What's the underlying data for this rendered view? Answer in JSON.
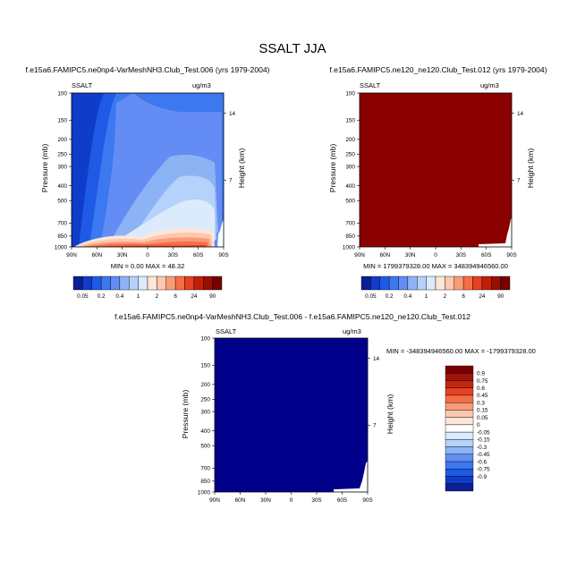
{
  "title": "SSALT JJA",
  "panels": [
    {
      "case": "f.e15a6.FAMIPC5.ne0np4-VarMeshNH3.Club_Test.006 (yrs 1979-2004)",
      "var": "SSALT",
      "units": "ug/m3",
      "ylabel": "Pressure (mb)",
      "ylabel2": "Height (km)",
      "stats": "MIN =   0.00  MAX =  48.32",
      "colorbar_labels": [
        "0.05",
        "0.2",
        "0.4",
        "1",
        "2",
        "6",
        "24",
        "90"
      ]
    },
    {
      "case": "f.e15a6.FAMIPC5.ne120_ne120.Club_Test.012 (yrs 1979-2004)",
      "var": "SSALT",
      "units": "ug/m3",
      "ylabel": "Pressure (mb)",
      "ylabel2": "Height (km)",
      "stats": "MIN = 1799379328.00  MAX = 348394946560.00",
      "colorbar_labels": [
        "0.05",
        "0.2",
        "0.4",
        "1",
        "2",
        "6",
        "24",
        "90"
      ]
    },
    {
      "case": "f.e15a6.FAMIPC5.ne0np4-VarMeshNH3.Club_Test.006 - f.e15a6.FAMIPC5.ne120_ne120.Club_Test.012",
      "var": "SSALT",
      "units": "ug/m3",
      "ylabel": "Pressure (mb)",
      "ylabel2": "Height (km)",
      "stats": "MIN = -348394946560.00  MAX = -1799379328.00",
      "colorbar_labels": [
        "0.9",
        "0.75",
        "0.6",
        "0.45",
        "0.3",
        "0.15",
        "0.05",
        "0",
        "-0.05",
        "-0.15",
        "-0.3",
        "-0.45",
        "-0.6",
        "-0.75",
        "-0.9"
      ]
    }
  ],
  "chart_data": {
    "type": "heatmap",
    "x_ticks": [
      "90N",
      "60N",
      "30N",
      "0",
      "30S",
      "60S",
      "90S"
    ],
    "y_ticks": [
      "100",
      "150",
      "200",
      "250",
      "300",
      "400",
      "500",
      "700",
      "850",
      "1000"
    ],
    "height_ticks": [
      "14",
      "7"
    ],
    "y_scale": "log",
    "xlim": [
      90,
      -90
    ],
    "ylim": [
      100,
      1000
    ],
    "colors_seq": [
      "#0a1e96",
      "#0f3cc8",
      "#1e5ae6",
      "#3c78f0",
      "#648cf5",
      "#8cb4f5",
      "#b4d2fa",
      "#dcebfc",
      "#fce6d7",
      "#fcc8af",
      "#fa9b78",
      "#f56e46",
      "#e64123",
      "#c31e0a",
      "#960f05",
      "#780000"
    ],
    "colors_diff": [
      "#780000",
      "#a0140a",
      "#c3280f",
      "#e64123",
      "#f56e46",
      "#fa9b78",
      "#fcc8af",
      "#fce6d7",
      "#ffffff",
      "#dcebfc",
      "#b4d2fa",
      "#8cb4f5",
      "#648cf5",
      "#3c78f0",
      "#1e5ae6",
      "#0f3cc8",
      "#0a1e96"
    ],
    "panel2_fill": "#8b0000",
    "panel3_fill": "#00008b"
  }
}
